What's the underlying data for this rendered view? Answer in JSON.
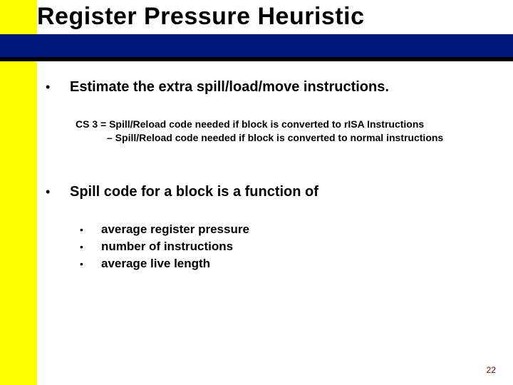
{
  "title": "Register Pressure Heuristic",
  "point1": "Estimate the extra spill/load/move instructions.",
  "cs_line1": "CS 3 = Spill/Reload code needed if block is converted to rISA Instructions",
  "cs_line2": "– Spill/Reload code needed if block is converted to normal instructions",
  "point2": "Spill code for a block is a function of",
  "sub": {
    "a": "average register pressure",
    "b": "number of instructions",
    "c": "average live length"
  },
  "page_number": "22",
  "colors": {
    "yellow": "#ffff00",
    "navy": "#001a7a",
    "black": "#000000",
    "page_num": "#7a0000",
    "bg": "#ffffff"
  }
}
